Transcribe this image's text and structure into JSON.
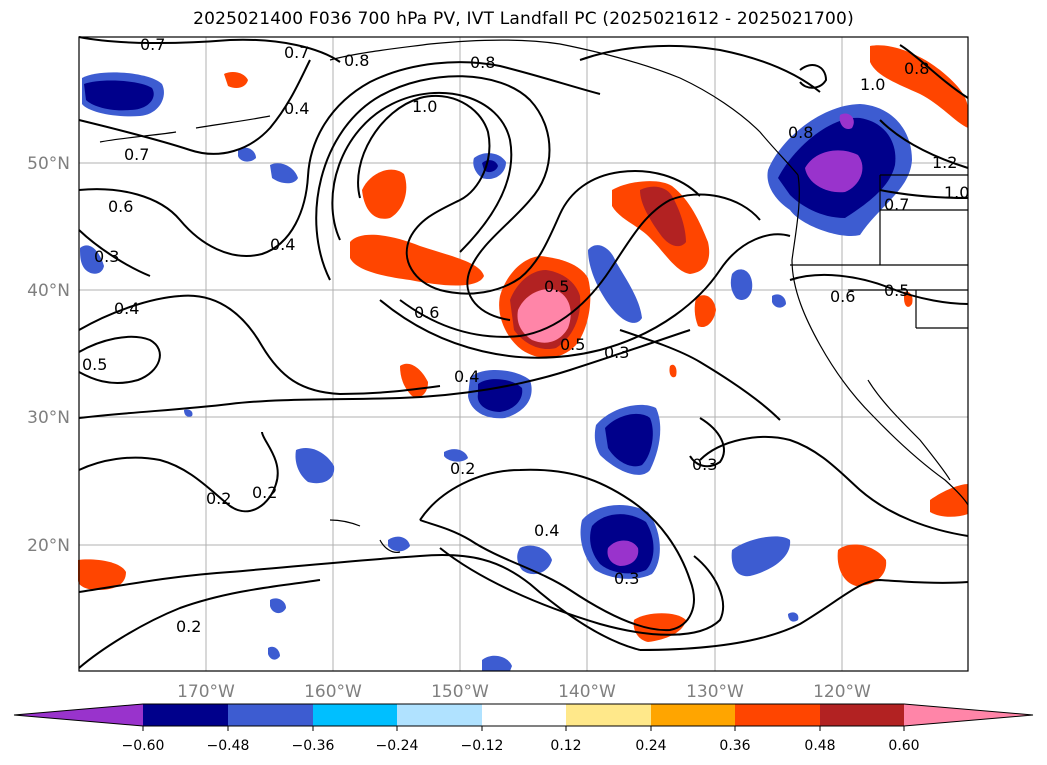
{
  "title": "2025021400 F036 700 hPa PV, IVT Landfall PC (2025021612 - 2025021700)",
  "map": {
    "lon_labels": [
      "170°W",
      "160°W",
      "150°W",
      "140°W",
      "130°W",
      "120°W"
    ],
    "lat_labels": [
      "50°N",
      "40°N",
      "30°N",
      "20°N"
    ],
    "gridlines": true,
    "contour_labels": [
      "0.7",
      "0.7",
      "0.8",
      "0.8",
      "1.0",
      "0.4",
      "0.7",
      "0.6",
      "0.4",
      "0.3",
      "0.4",
      "0.5",
      "0.6",
      "0.5",
      "0.5",
      "0.3",
      "0.4",
      "0.2",
      "0.3",
      "0.2",
      "0.2",
      "0.4",
      "0.3",
      "0.2",
      "0.8",
      "1.0",
      "0.8",
      "1.2",
      "1.0",
      "0.7",
      "0.6",
      "0.5"
    ]
  },
  "colorbar": {
    "ticks": [
      "−0.60",
      "−0.48",
      "−0.36",
      "−0.24",
      "−0.12",
      "0.12",
      "0.24",
      "0.36",
      "0.48",
      "0.60"
    ],
    "colors": [
      "#9933cc",
      "#00008b",
      "#3d5cd1",
      "#00bfff",
      "#b0e2ff",
      "#ffffff",
      "#ffe88a",
      "#ffa500",
      "#ff4500",
      "#b22222",
      "#ff85a8"
    ],
    "extend": "both"
  }
}
